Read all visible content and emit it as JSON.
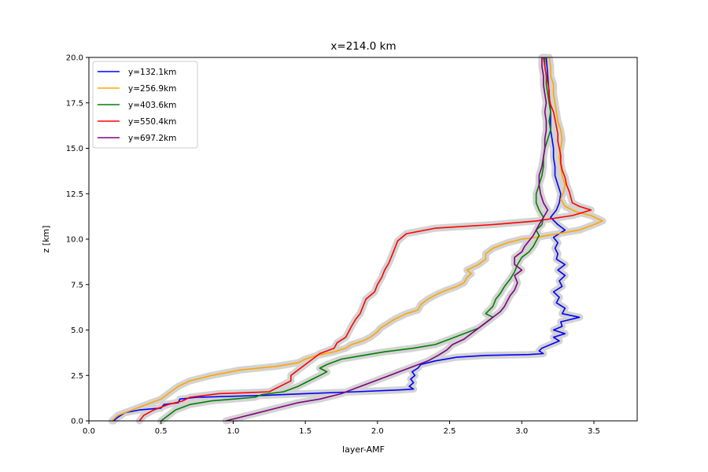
{
  "chart_data": {
    "type": "line",
    "title": "x=214.0 km",
    "xlabel": "layer-AMF",
    "ylabel": "z [km]",
    "xlim": [
      0.0,
      3.8
    ],
    "ylim": [
      0.0,
      20.0
    ],
    "xticks": [
      "0.0",
      "0.5",
      "1.0",
      "1.5",
      "2.0",
      "2.5",
      "3.0",
      "3.5"
    ],
    "yticks": [
      "0.0",
      "2.5",
      "5.0",
      "7.5",
      "10.0",
      "12.5",
      "15.0",
      "17.5",
      "20.0"
    ],
    "grid": false,
    "legend_position": "upper-left",
    "uncertainty_band_color": "#d3d3d3",
    "series": [
      {
        "name": "y=132.1km",
        "color": "#0000ff",
        "points": [
          [
            0.17,
            0.0
          ],
          [
            0.2,
            0.2
          ],
          [
            0.25,
            0.45
          ],
          [
            0.35,
            0.6
          ],
          [
            0.5,
            0.7
          ],
          [
            0.52,
            0.9
          ],
          [
            0.62,
            1.0
          ],
          [
            0.63,
            1.2
          ],
          [
            0.75,
            1.3
          ],
          [
            1.2,
            1.4
          ],
          [
            1.5,
            1.5
          ],
          [
            1.85,
            1.6
          ],
          [
            2.15,
            1.7
          ],
          [
            2.25,
            1.75
          ],
          [
            2.22,
            1.9
          ],
          [
            2.25,
            2.1
          ],
          [
            2.23,
            2.3
          ],
          [
            2.26,
            2.5
          ],
          [
            2.24,
            2.7
          ],
          [
            2.28,
            2.9
          ],
          [
            2.3,
            3.1
          ],
          [
            2.4,
            3.3
          ],
          [
            2.55,
            3.5
          ],
          [
            2.75,
            3.6
          ],
          [
            3.05,
            3.65
          ],
          [
            3.15,
            3.7
          ],
          [
            3.12,
            3.85
          ],
          [
            3.14,
            4.0
          ],
          [
            3.2,
            4.2
          ],
          [
            3.26,
            4.4
          ],
          [
            3.22,
            4.6
          ],
          [
            3.3,
            4.8
          ],
          [
            3.22,
            5.0
          ],
          [
            3.28,
            5.2
          ],
          [
            3.27,
            5.45
          ],
          [
            3.4,
            5.7
          ],
          [
            3.28,
            5.9
          ],
          [
            3.3,
            6.2
          ],
          [
            3.24,
            6.5
          ],
          [
            3.26,
            6.8
          ],
          [
            3.22,
            7.1
          ],
          [
            3.28,
            7.4
          ],
          [
            3.26,
            7.7
          ],
          [
            3.3,
            8.0
          ],
          [
            3.25,
            8.3
          ],
          [
            3.3,
            8.6
          ],
          [
            3.24,
            8.9
          ],
          [
            3.25,
            9.2
          ],
          [
            3.23,
            9.5
          ],
          [
            3.25,
            9.8
          ],
          [
            3.22,
            10.1
          ],
          [
            3.3,
            10.5
          ],
          [
            3.25,
            10.8
          ],
          [
            3.2,
            11.2
          ],
          [
            3.24,
            11.6
          ],
          [
            3.26,
            12.0
          ],
          [
            3.27,
            12.5
          ],
          [
            3.25,
            13.0
          ],
          [
            3.23,
            13.5
          ],
          [
            3.23,
            14.0
          ],
          [
            3.22,
            14.5
          ],
          [
            3.22,
            15.0
          ],
          [
            3.21,
            15.5
          ],
          [
            3.2,
            16.0
          ],
          [
            3.2,
            17.0
          ],
          [
            3.19,
            18.0
          ],
          [
            3.18,
            19.0
          ],
          [
            3.17,
            20.0
          ]
        ]
      },
      {
        "name": "y=256.9km",
        "color": "#ffa500",
        "points": [
          [
            0.16,
            0.0
          ],
          [
            0.2,
            0.3
          ],
          [
            0.3,
            0.6
          ],
          [
            0.4,
            0.9
          ],
          [
            0.5,
            1.2
          ],
          [
            0.55,
            1.5
          ],
          [
            0.62,
            1.9
          ],
          [
            0.7,
            2.2
          ],
          [
            0.85,
            2.5
          ],
          [
            1.05,
            2.8
          ],
          [
            1.3,
            3.0
          ],
          [
            1.45,
            3.2
          ],
          [
            1.5,
            3.4
          ],
          [
            1.58,
            3.6
          ],
          [
            1.7,
            3.8
          ],
          [
            1.78,
            4.0
          ],
          [
            1.82,
            4.2
          ],
          [
            1.9,
            4.4
          ],
          [
            1.95,
            4.6
          ],
          [
            2.0,
            4.9
          ],
          [
            2.02,
            5.1
          ],
          [
            2.08,
            5.4
          ],
          [
            2.12,
            5.6
          ],
          [
            2.2,
            5.9
          ],
          [
            2.28,
            6.1
          ],
          [
            2.3,
            6.4
          ],
          [
            2.35,
            6.7
          ],
          [
            2.42,
            7.0
          ],
          [
            2.48,
            7.2
          ],
          [
            2.55,
            7.4
          ],
          [
            2.6,
            7.6
          ],
          [
            2.62,
            7.9
          ],
          [
            2.65,
            8.1
          ],
          [
            2.62,
            8.3
          ],
          [
            2.7,
            8.6
          ],
          [
            2.75,
            8.9
          ],
          [
            2.75,
            9.2
          ],
          [
            2.8,
            9.5
          ],
          [
            2.9,
            9.8
          ],
          [
            3.0,
            10.0
          ],
          [
            3.1,
            10.1
          ],
          [
            3.25,
            10.3
          ],
          [
            3.4,
            10.5
          ],
          [
            3.5,
            10.8
          ],
          [
            3.56,
            11.0
          ],
          [
            3.48,
            11.3
          ],
          [
            3.38,
            11.5
          ],
          [
            3.3,
            11.8
          ],
          [
            3.27,
            12.2
          ],
          [
            3.29,
            12.6
          ],
          [
            3.3,
            13.0
          ],
          [
            3.28,
            13.5
          ],
          [
            3.27,
            14.0
          ],
          [
            3.26,
            14.5
          ],
          [
            3.27,
            15.0
          ],
          [
            3.28,
            15.5
          ],
          [
            3.27,
            16.0
          ],
          [
            3.25,
            16.5
          ],
          [
            3.24,
            17.0
          ],
          [
            3.23,
            17.5
          ],
          [
            3.22,
            18.0
          ],
          [
            3.22,
            18.5
          ],
          [
            3.2,
            19.0
          ],
          [
            3.2,
            19.5
          ],
          [
            3.19,
            20.0
          ]
        ]
      },
      {
        "name": "y=403.6km",
        "color": "#008000",
        "points": [
          [
            0.5,
            0.0
          ],
          [
            0.55,
            0.3
          ],
          [
            0.6,
            0.6
          ],
          [
            0.7,
            0.9
          ],
          [
            0.85,
            1.1
          ],
          [
            1.0,
            1.2
          ],
          [
            1.15,
            1.3
          ],
          [
            1.2,
            1.45
          ],
          [
            1.35,
            1.6
          ],
          [
            1.45,
            1.9
          ],
          [
            1.5,
            2.1
          ],
          [
            1.55,
            2.3
          ],
          [
            1.6,
            2.5
          ],
          [
            1.65,
            2.7
          ],
          [
            1.6,
            2.9
          ],
          [
            1.65,
            3.1
          ],
          [
            1.75,
            3.4
          ],
          [
            1.9,
            3.6
          ],
          [
            2.05,
            3.8
          ],
          [
            2.25,
            4.0
          ],
          [
            2.4,
            4.2
          ],
          [
            2.5,
            4.5
          ],
          [
            2.6,
            4.8
          ],
          [
            2.7,
            5.1
          ],
          [
            2.75,
            5.4
          ],
          [
            2.8,
            5.7
          ],
          [
            2.75,
            5.9
          ],
          [
            2.8,
            6.3
          ],
          [
            2.82,
            6.7
          ],
          [
            2.85,
            7.0
          ],
          [
            2.88,
            7.4
          ],
          [
            2.92,
            7.8
          ],
          [
            2.95,
            8.2
          ],
          [
            2.97,
            8.6
          ],
          [
            3.0,
            9.0
          ],
          [
            3.05,
            9.3
          ],
          [
            3.08,
            9.6
          ],
          [
            3.1,
            9.9
          ],
          [
            3.12,
            10.2
          ],
          [
            3.1,
            10.5
          ],
          [
            3.14,
            10.8
          ],
          [
            3.15,
            11.2
          ],
          [
            3.12,
            11.6
          ],
          [
            3.1,
            12.0
          ],
          [
            3.1,
            12.5
          ],
          [
            3.12,
            13.0
          ],
          [
            3.14,
            13.5
          ],
          [
            3.15,
            14.0
          ],
          [
            3.15,
            14.5
          ],
          [
            3.16,
            15.0
          ],
          [
            3.18,
            15.5
          ],
          [
            3.2,
            16.0
          ],
          [
            3.19,
            16.5
          ],
          [
            3.2,
            17.0
          ],
          [
            3.19,
            17.5
          ],
          [
            3.18,
            18.0
          ],
          [
            3.17,
            18.5
          ],
          [
            3.17,
            19.0
          ],
          [
            3.16,
            19.5
          ],
          [
            3.16,
            20.0
          ]
        ]
      },
      {
        "name": "y=550.4km",
        "color": "#ff0000",
        "points": [
          [
            0.35,
            0.0
          ],
          [
            0.38,
            0.3
          ],
          [
            0.45,
            0.6
          ],
          [
            0.55,
            0.9
          ],
          [
            0.65,
            1.1
          ],
          [
            0.7,
            1.3
          ],
          [
            0.9,
            1.5
          ],
          [
            1.1,
            1.55
          ],
          [
            1.25,
            1.6
          ],
          [
            1.3,
            1.8
          ],
          [
            1.35,
            2.0
          ],
          [
            1.4,
            2.2
          ],
          [
            1.4,
            2.5
          ],
          [
            1.45,
            2.8
          ],
          [
            1.5,
            3.1
          ],
          [
            1.55,
            3.4
          ],
          [
            1.6,
            3.7
          ],
          [
            1.7,
            4.0
          ],
          [
            1.72,
            4.3
          ],
          [
            1.78,
            4.6
          ],
          [
            1.8,
            4.9
          ],
          [
            1.82,
            5.2
          ],
          [
            1.85,
            5.6
          ],
          [
            1.88,
            5.9
          ],
          [
            1.9,
            6.3
          ],
          [
            1.92,
            6.7
          ],
          [
            1.98,
            7.1
          ],
          [
            2.0,
            7.5
          ],
          [
            2.03,
            7.9
          ],
          [
            2.05,
            8.3
          ],
          [
            2.08,
            8.7
          ],
          [
            2.1,
            9.1
          ],
          [
            2.12,
            9.5
          ],
          [
            2.14,
            9.9
          ],
          [
            2.2,
            10.3
          ],
          [
            2.4,
            10.6
          ],
          [
            2.8,
            10.8
          ],
          [
            3.1,
            11.0
          ],
          [
            3.35,
            11.3
          ],
          [
            3.48,
            11.6
          ],
          [
            3.4,
            11.8
          ],
          [
            3.35,
            12.0
          ],
          [
            3.34,
            12.3
          ],
          [
            3.33,
            12.6
          ],
          [
            3.31,
            13.0
          ],
          [
            3.3,
            13.4
          ],
          [
            3.28,
            13.8
          ],
          [
            3.27,
            14.2
          ],
          [
            3.27,
            14.6
          ],
          [
            3.26,
            15.0
          ],
          [
            3.25,
            15.4
          ],
          [
            3.25,
            15.8
          ],
          [
            3.24,
            16.2
          ],
          [
            3.23,
            16.6
          ],
          [
            3.22,
            17.0
          ],
          [
            3.2,
            17.4
          ],
          [
            3.19,
            17.8
          ],
          [
            3.19,
            18.2
          ],
          [
            3.18,
            18.6
          ],
          [
            3.17,
            19.0
          ],
          [
            3.16,
            19.5
          ],
          [
            3.15,
            20.0
          ]
        ]
      },
      {
        "name": "y=697.2km",
        "color": "#800080",
        "points": [
          [
            0.95,
            0.0
          ],
          [
            1.05,
            0.2
          ],
          [
            1.15,
            0.4
          ],
          [
            1.25,
            0.6
          ],
          [
            1.35,
            0.8
          ],
          [
            1.45,
            1.0
          ],
          [
            1.6,
            1.2
          ],
          [
            1.75,
            1.5
          ],
          [
            1.85,
            1.8
          ],
          [
            1.95,
            2.1
          ],
          [
            2.05,
            2.4
          ],
          [
            2.15,
            2.7
          ],
          [
            2.25,
            3.0
          ],
          [
            2.35,
            3.3
          ],
          [
            2.42,
            3.6
          ],
          [
            2.48,
            3.9
          ],
          [
            2.52,
            4.2
          ],
          [
            2.6,
            4.5
          ],
          [
            2.65,
            4.8
          ],
          [
            2.7,
            5.1
          ],
          [
            2.75,
            5.4
          ],
          [
            2.8,
            5.7
          ],
          [
            2.85,
            6.0
          ],
          [
            2.88,
            6.3
          ],
          [
            2.9,
            6.6
          ],
          [
            2.92,
            6.9
          ],
          [
            2.95,
            7.2
          ],
          [
            2.97,
            7.6
          ],
          [
            2.95,
            8.0
          ],
          [
            3.0,
            8.3
          ],
          [
            2.95,
            8.6
          ],
          [
            2.95,
            9.0
          ],
          [
            3.0,
            9.3
          ],
          [
            3.02,
            9.6
          ],
          [
            3.05,
            9.9
          ],
          [
            3.08,
            10.2
          ],
          [
            3.1,
            10.5
          ],
          [
            3.12,
            10.8
          ],
          [
            3.15,
            11.2
          ],
          [
            3.18,
            11.6
          ],
          [
            3.15,
            12.0
          ],
          [
            3.13,
            12.5
          ],
          [
            3.12,
            13.0
          ],
          [
            3.12,
            13.5
          ],
          [
            3.14,
            14.0
          ],
          [
            3.15,
            14.5
          ],
          [
            3.16,
            15.0
          ],
          [
            3.16,
            15.5
          ],
          [
            3.17,
            16.0
          ],
          [
            3.17,
            16.5
          ],
          [
            3.16,
            17.0
          ],
          [
            3.17,
            17.5
          ],
          [
            3.16,
            18.0
          ],
          [
            3.15,
            18.5
          ],
          [
            3.15,
            19.0
          ],
          [
            3.14,
            19.5
          ],
          [
            3.14,
            20.0
          ]
        ]
      }
    ]
  }
}
